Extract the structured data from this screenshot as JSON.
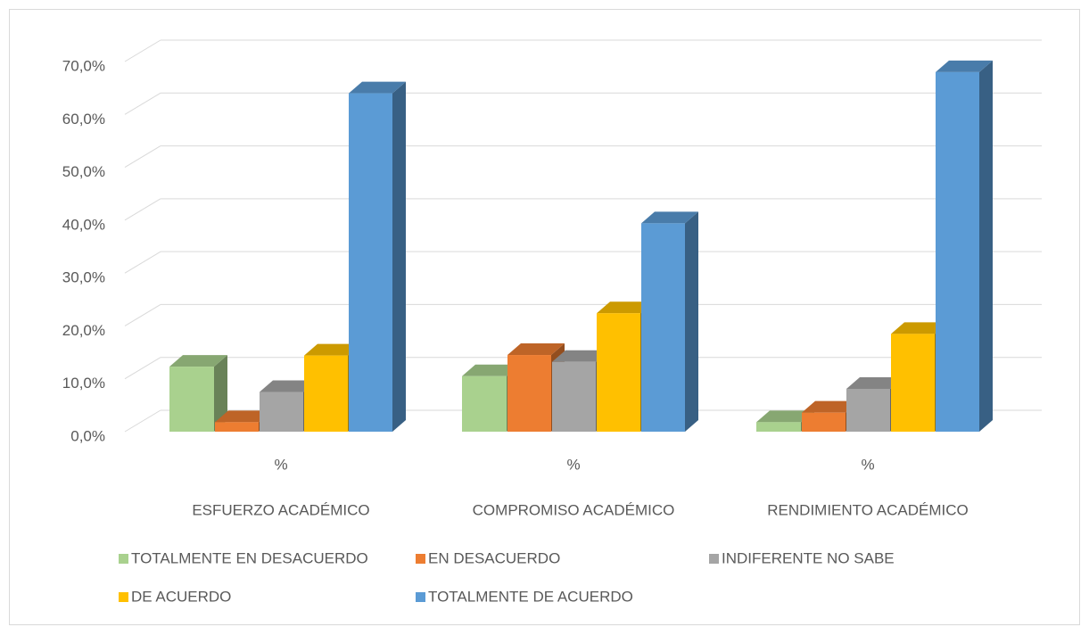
{
  "chart_data": {
    "type": "bar3d",
    "subcategories": [
      "%",
      "%",
      "%"
    ],
    "categories": [
      "ESFUERZO ACADÉMICO",
      "COMPROMISO ACADÉMICO",
      "RENDIMIENTO ACADÉMICO"
    ],
    "series": [
      {
        "name": "TOTALMENTE EN DESACUERDO",
        "color": "#a9d18e",
        "values": [
          12.3,
          10.5,
          1.8
        ]
      },
      {
        "name": "EN DESACUERDO",
        "color": "#ed7d31",
        "values": [
          1.8,
          14.5,
          3.6
        ]
      },
      {
        "name": "INDIFERENTE NO SABE",
        "color": "#a5a5a5",
        "values": [
          7.5,
          13.2,
          8.1
        ]
      },
      {
        "name": "DE ACUERDO",
        "color": "#ffc000",
        "values": [
          14.4,
          22.4,
          18.5
        ]
      },
      {
        "name": "TOTALMENTE DE ACUERDO",
        "color": "#5b9bd5",
        "values": [
          64.0,
          39.4,
          68.0
        ]
      }
    ],
    "ylim": [
      0,
      70
    ],
    "yticks": [
      {
        "value": 0,
        "label": "0,0%"
      },
      {
        "value": 10,
        "label": "10,0%"
      },
      {
        "value": 20,
        "label": "20,0%"
      },
      {
        "value": 30,
        "label": "30,0%"
      },
      {
        "value": 40,
        "label": "40,0%"
      },
      {
        "value": 50,
        "label": "50,0%"
      },
      {
        "value": 60,
        "label": "60,0%"
      },
      {
        "value": 70,
        "label": "70,0%"
      }
    ],
    "grid": true,
    "legend": "bottom"
  }
}
